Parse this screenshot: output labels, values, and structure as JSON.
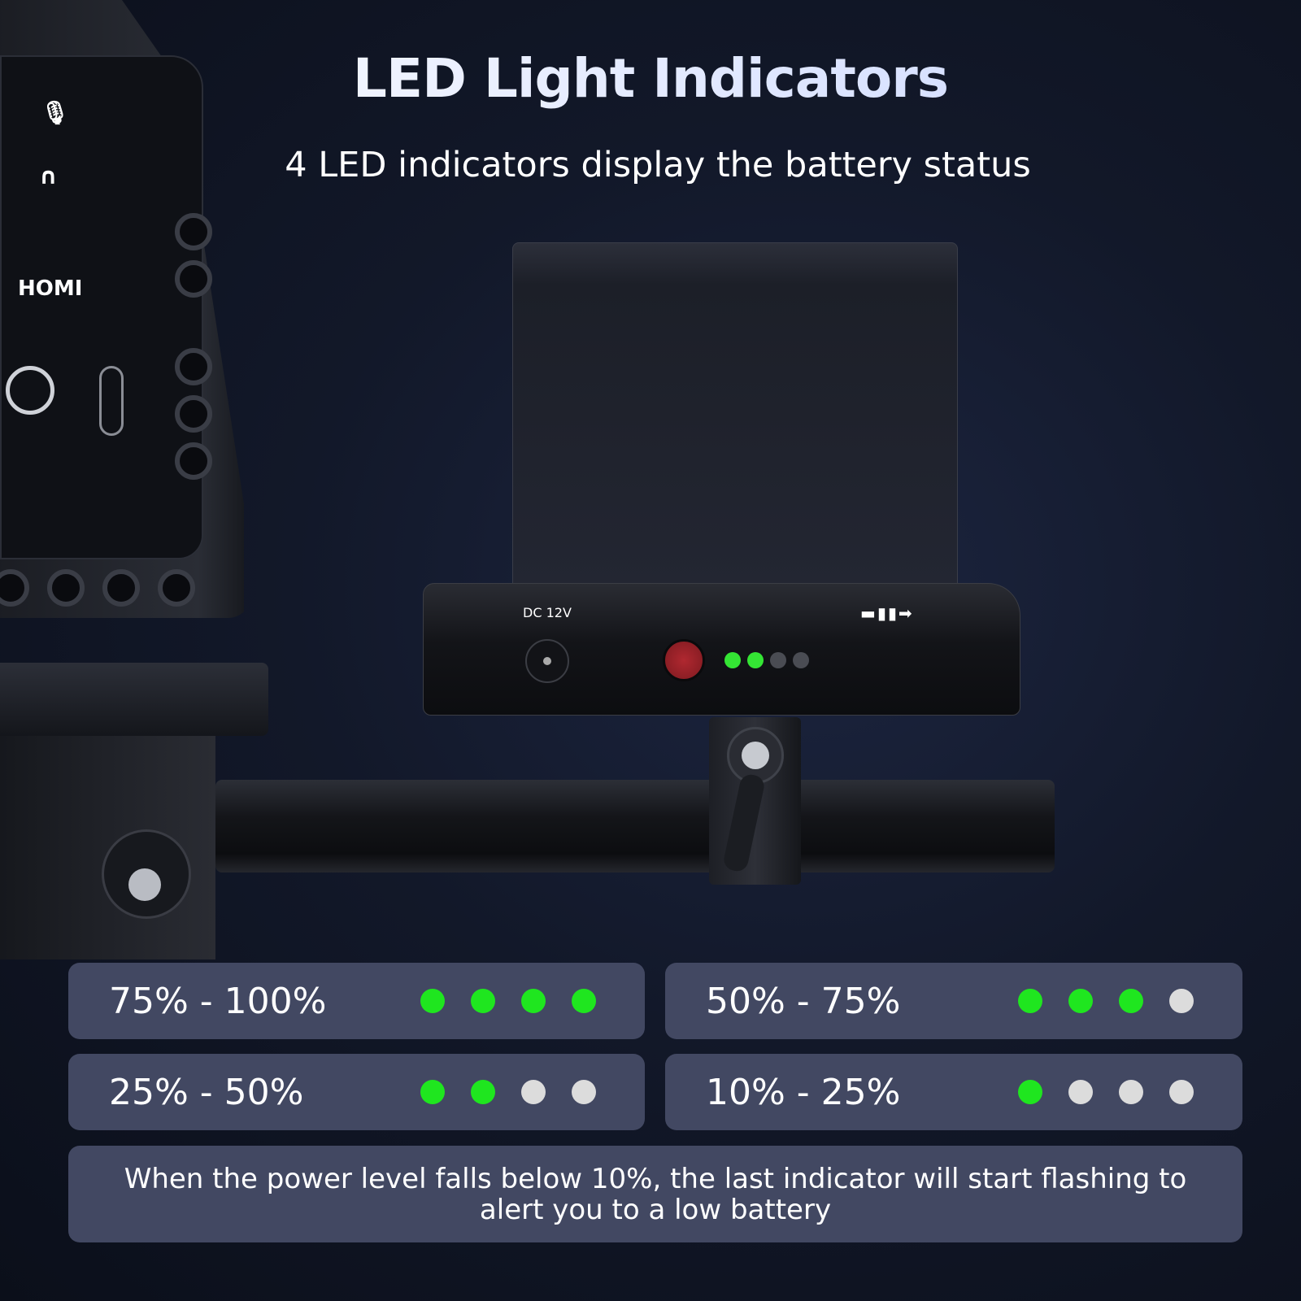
{
  "header": {
    "title": "LED Light Indicators",
    "subtitle": "4 LED indicators display the battery status"
  },
  "camera": {
    "port_label": "HOMI"
  },
  "battery": {
    "dc_label": "DC 12V",
    "led_states": [
      "on",
      "on",
      "off",
      "off"
    ]
  },
  "colors": {
    "led_on": "#1fe61f",
    "led_off": "#dcdcdc",
    "card_bg": "#424862",
    "power_button": "#9b2229"
  },
  "levels": [
    {
      "range": "75% - 100%",
      "leds": [
        true,
        true,
        true,
        true
      ]
    },
    {
      "range": "50% - 75%",
      "leds": [
        true,
        true,
        true,
        false
      ]
    },
    {
      "range": "25% - 50%",
      "leds": [
        true,
        true,
        false,
        false
      ]
    },
    {
      "range": "10% - 25%",
      "leds": [
        true,
        false,
        false,
        false
      ]
    }
  ],
  "note": "When the power level falls below 10%, the last indicator will start flashing to alert you to a low battery"
}
